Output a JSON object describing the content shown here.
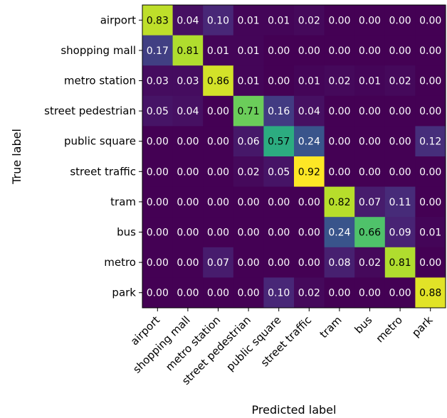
{
  "chart_data": {
    "type": "heatmap",
    "title": "",
    "xlabel": "Predicted label",
    "ylabel": "True label",
    "colormap": "viridis",
    "value_range": [
      0,
      0.92
    ],
    "colors": {
      "low": "#440154",
      "high": "#fde725"
    },
    "categories": [
      "airport",
      "shopping mall",
      "metro station",
      "street pedestrian",
      "public square",
      "street traffic",
      "tram",
      "bus",
      "metro",
      "park"
    ],
    "matrix": [
      [
        0.83,
        0.04,
        0.1,
        0.01,
        0.01,
        0.02,
        0.0,
        0.0,
        0.0,
        0.0
      ],
      [
        0.17,
        0.81,
        0.01,
        0.01,
        0.0,
        0.0,
        0.0,
        0.0,
        0.0,
        0.0
      ],
      [
        0.03,
        0.03,
        0.86,
        0.01,
        0.0,
        0.01,
        0.02,
        0.01,
        0.02,
        0.0
      ],
      [
        0.05,
        0.04,
        0.0,
        0.71,
        0.16,
        0.04,
        0.0,
        0.0,
        0.0,
        0.0
      ],
      [
        0.0,
        0.0,
        0.0,
        0.06,
        0.57,
        0.24,
        0.0,
        0.0,
        0.0,
        0.12
      ],
      [
        0.0,
        0.0,
        0.0,
        0.02,
        0.05,
        0.92,
        0.0,
        0.0,
        0.0,
        0.0
      ],
      [
        0.0,
        0.0,
        0.0,
        0.0,
        0.0,
        0.0,
        0.82,
        0.07,
        0.11,
        0.0
      ],
      [
        0.0,
        0.0,
        0.0,
        0.0,
        0.0,
        0.0,
        0.24,
        0.66,
        0.09,
        0.01
      ],
      [
        0.0,
        0.0,
        0.07,
        0.0,
        0.0,
        0.0,
        0.08,
        0.02,
        0.81,
        0.0
      ],
      [
        0.0,
        0.0,
        0.0,
        0.0,
        0.1,
        0.02,
        0.0,
        0.0,
        0.0,
        0.88
      ]
    ]
  }
}
